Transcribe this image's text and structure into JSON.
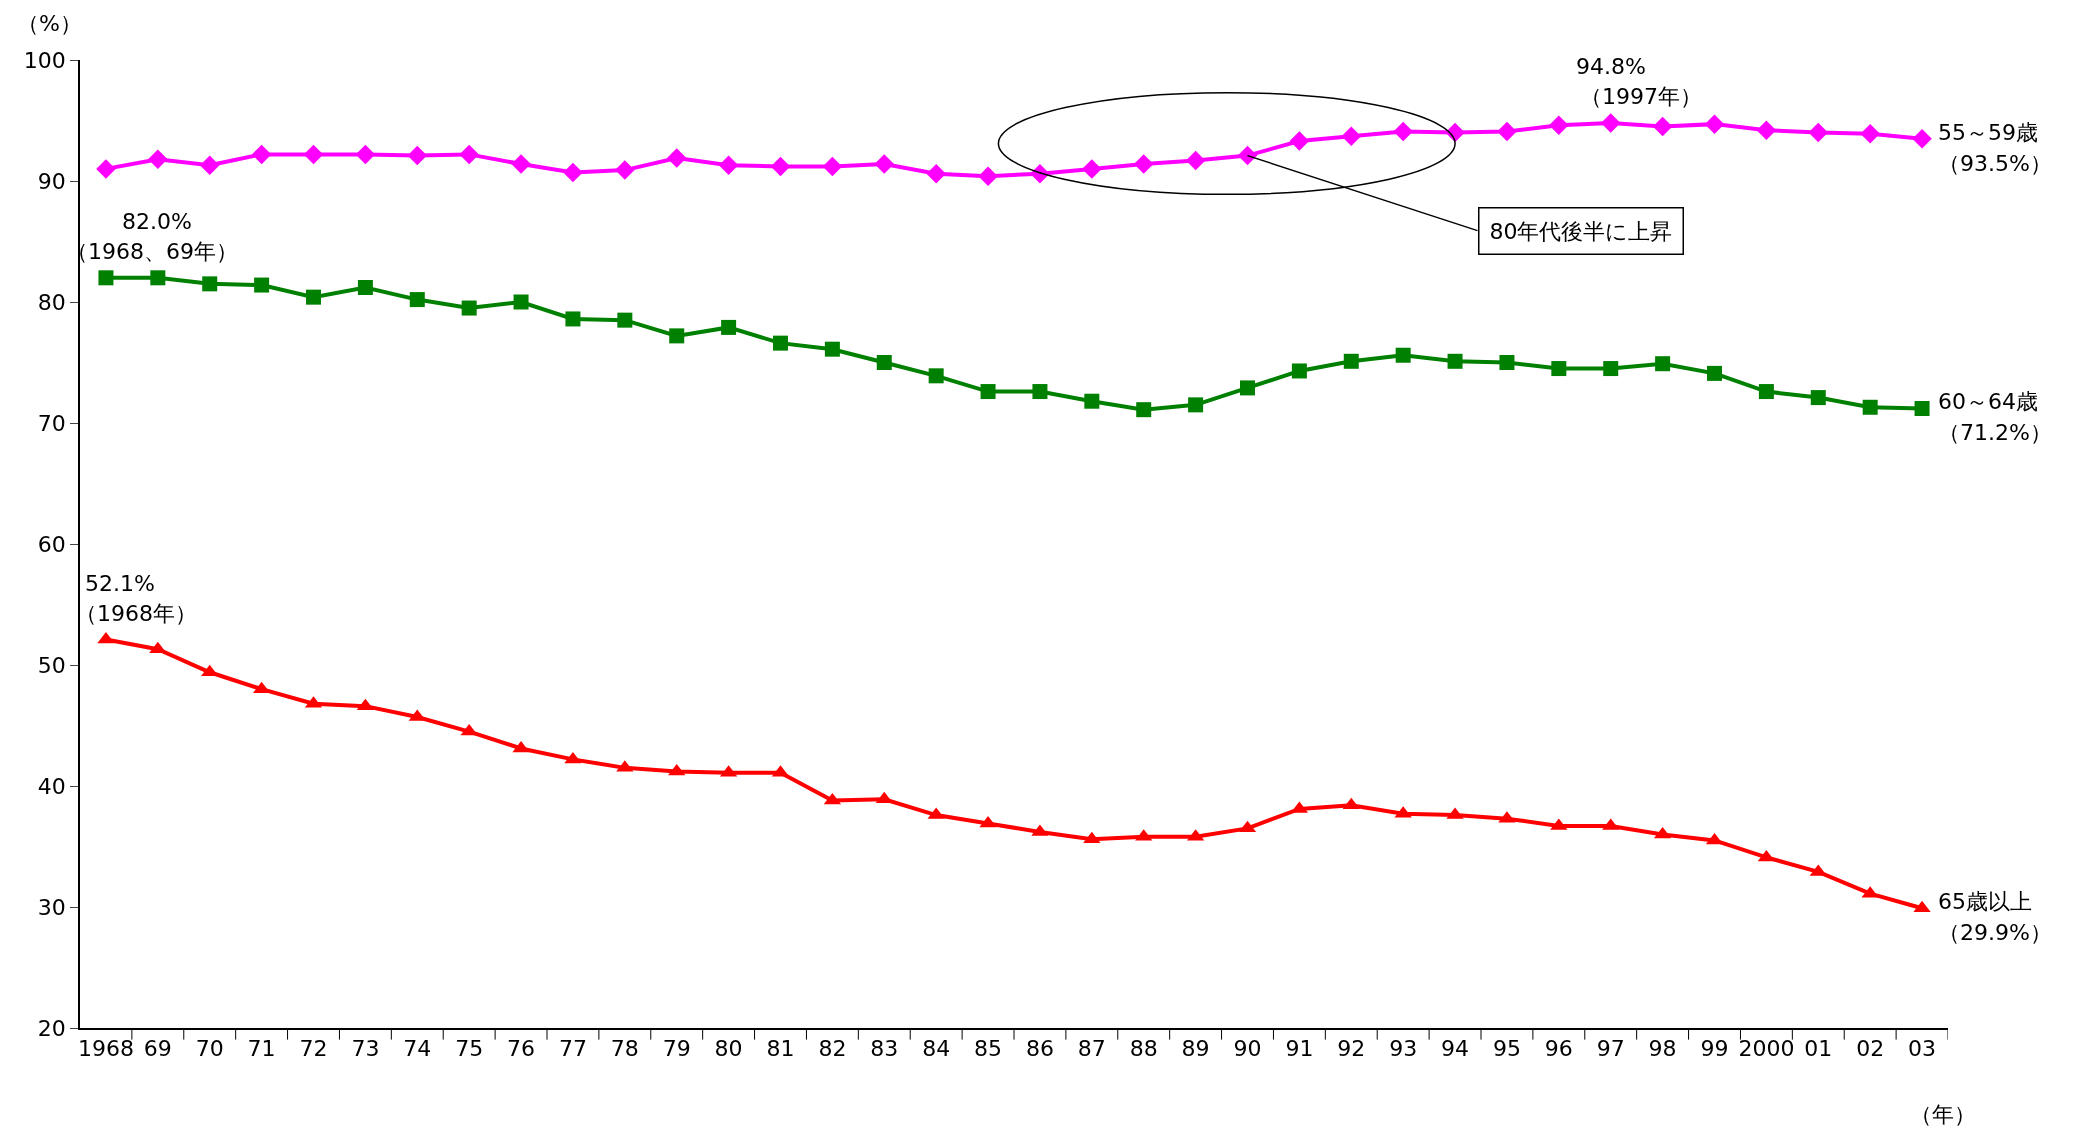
{
  "chart_data": {
    "type": "line",
    "ylabel": "（%）",
    "xlabel": "（年）",
    "categories": [
      "1968",
      "69",
      "70",
      "71",
      "72",
      "73",
      "74",
      "75",
      "76",
      "77",
      "78",
      "79",
      "80",
      "81",
      "82",
      "83",
      "84",
      "85",
      "86",
      "87",
      "88",
      "89",
      "90",
      "91",
      "92",
      "93",
      "94",
      "95",
      "96",
      "97",
      "98",
      "99",
      "2000",
      "01",
      "02",
      "03"
    ],
    "series": [
      {
        "name": "55～59歳",
        "color": "#ff00ff",
        "marker": "diamond",
        "values": [
          91.0,
          91.8,
          91.3,
          92.2,
          92.2,
          92.2,
          92.1,
          92.2,
          91.4,
          90.7,
          90.9,
          91.9,
          91.3,
          91.2,
          91.2,
          91.4,
          90.6,
          90.4,
          90.6,
          91.0,
          91.4,
          91.7,
          92.1,
          93.3,
          93.7,
          94.1,
          94.0,
          94.1,
          94.6,
          94.8,
          94.5,
          94.7,
          94.2,
          94.0,
          93.9,
          93.5
        ]
      },
      {
        "name": "60～64歳",
        "color": "#008000",
        "marker": "square",
        "values": [
          82.0,
          82.0,
          81.5,
          81.4,
          80.4,
          81.2,
          80.2,
          79.5,
          80.0,
          78.6,
          78.5,
          77.2,
          77.9,
          76.6,
          76.1,
          75.0,
          73.9,
          72.6,
          72.6,
          71.8,
          71.1,
          71.5,
          72.9,
          74.3,
          75.1,
          75.6,
          75.1,
          75.0,
          74.5,
          74.5,
          74.9,
          74.1,
          72.6,
          72.1,
          71.3,
          71.2
        ]
      },
      {
        "name": "65歳以上",
        "color": "#ff0000",
        "marker": "triangle",
        "values": [
          52.1,
          51.3,
          49.4,
          48.0,
          46.8,
          46.6,
          45.7,
          44.5,
          43.1,
          42.2,
          41.5,
          41.2,
          41.1,
          41.1,
          38.8,
          38.9,
          37.6,
          36.9,
          36.2,
          35.6,
          35.8,
          35.8,
          36.5,
          38.1,
          38.4,
          37.7,
          37.6,
          37.3,
          36.7,
          36.7,
          36.0,
          35.5,
          34.1,
          32.9,
          31.1,
          29.9
        ]
      }
    ],
    "ylim": [
      20,
      100
    ],
    "yticks": [
      20,
      30,
      40,
      50,
      60,
      70,
      80,
      90,
      100
    ],
    "legend": false,
    "line_style": "solid",
    "annotations": [
      {
        "text": "82.0%",
        "x": "1968",
        "y": 82.0
      },
      {
        "text": "（1968、69年）",
        "x": "69",
        "y": 82.0
      },
      {
        "text": "52.1%",
        "x": "1968",
        "y": 52.1
      },
      {
        "text": "（1968年）",
        "x": "1968",
        "y": 52.1
      },
      {
        "text": "94.8%",
        "x": "97",
        "y": 94.8
      },
      {
        "text": "（1997年）",
        "x": "97",
        "y": 94.8
      },
      {
        "text": "（93.5%）",
        "x": "03",
        "y": 93.5
      },
      {
        "text": "（71.2%）",
        "x": "03",
        "y": 71.2
      },
      {
        "text": "（29.9%）",
        "x": "03",
        "y": 29.9
      },
      {
        "text": "80年代後半に上昇",
        "x": "90",
        "y": 92.1
      }
    ]
  }
}
